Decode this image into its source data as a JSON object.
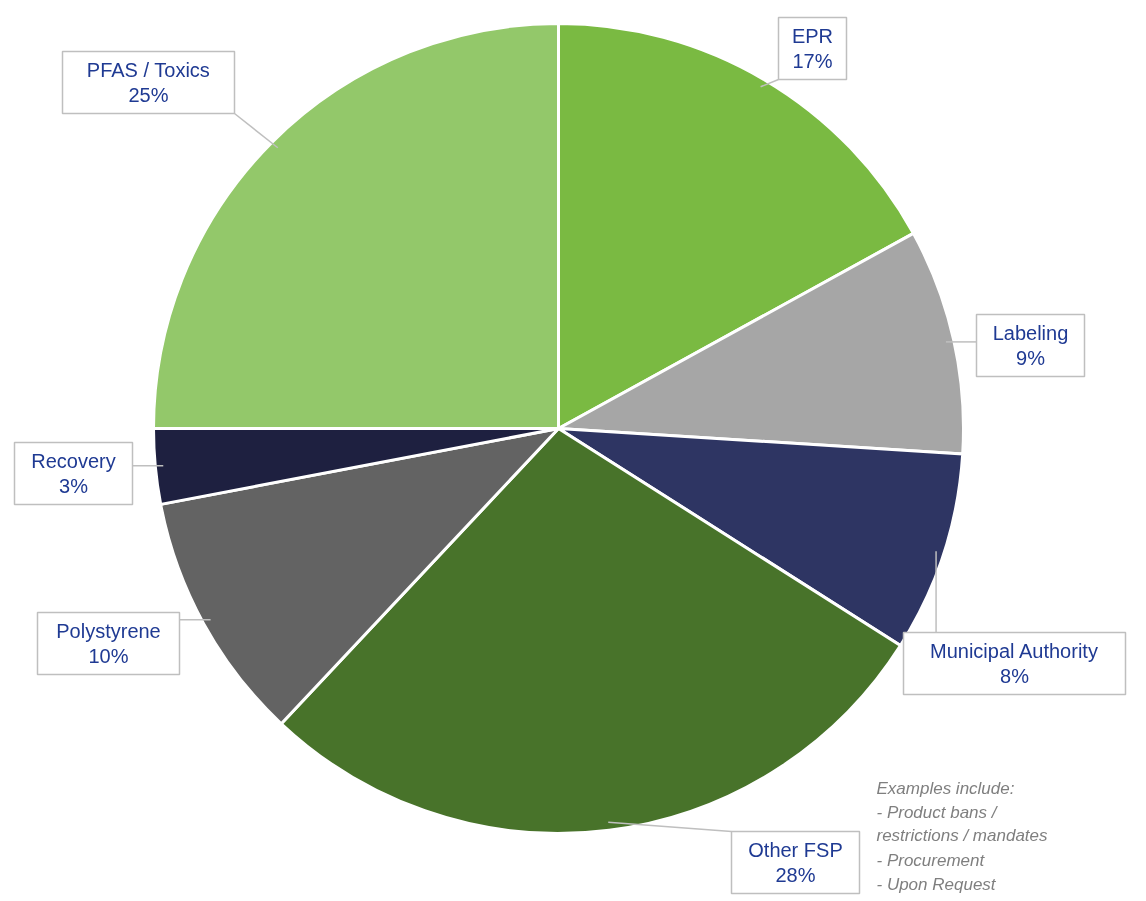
{
  "chart_data": {
    "type": "pie",
    "categories": [
      "EPR",
      "Labeling",
      "Municipal Authority",
      "Other FSP",
      "Polystyrene",
      "Recovery",
      "PFAS / Toxics"
    ],
    "values": [
      17,
      9,
      8,
      28,
      10,
      3,
      25
    ],
    "value_labels": [
      "17%",
      "9%",
      "8%",
      "28%",
      "10%",
      "3%",
      "25%"
    ],
    "colors": [
      "#7aba42",
      "#a6a6a6",
      "#2e3563",
      "#48732a",
      "#636363",
      "#1e2040",
      "#93c86a"
    ],
    "annotations": [
      "Examples include:",
      "- Product bans /\n  restrictions / mandates",
      "- Procurement",
      "- Upon Request"
    ]
  }
}
